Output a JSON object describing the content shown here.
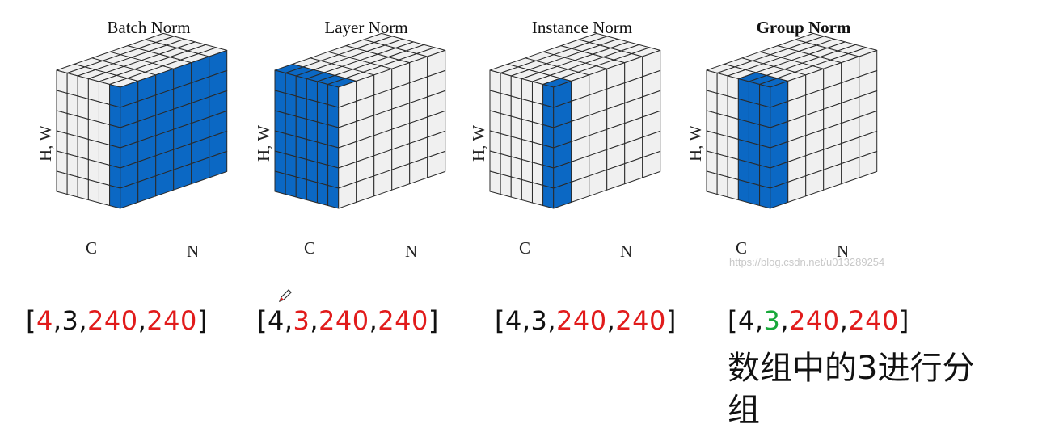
{
  "colors": {
    "highlight": "#0b68c4",
    "cell": "#f0f0f0",
    "edge": "#2a2a2a",
    "red": "#e11b1b",
    "green": "#18a83a",
    "black": "#111111"
  },
  "axes": {
    "hw": "H, W",
    "c": "C",
    "n": "N"
  },
  "cubes": [
    {
      "title": "Batch Norm",
      "bold": false,
      "highlight": "batch",
      "shape": [
        {
          "t": "[",
          "c": "black"
        },
        {
          "t": "4",
          "c": "red"
        },
        {
          "t": ",3,",
          "c": "black"
        },
        {
          "t": "240",
          "c": "red"
        },
        {
          "t": ",",
          "c": "black"
        },
        {
          "t": "240",
          "c": "red"
        },
        {
          "t": "]",
          "c": "black"
        }
      ]
    },
    {
      "title": "Layer Norm",
      "bold": false,
      "highlight": "layer",
      "shape": [
        {
          "t": "[4,",
          "c": "black"
        },
        {
          "t": "3",
          "c": "red"
        },
        {
          "t": ",",
          "c": "black"
        },
        {
          "t": "240",
          "c": "red"
        },
        {
          "t": ",",
          "c": "black"
        },
        {
          "t": "240",
          "c": "red"
        },
        {
          "t": "]",
          "c": "black"
        }
      ]
    },
    {
      "title": "Instance Norm",
      "bold": false,
      "highlight": "instance",
      "shape": [
        {
          "t": "[4,3,",
          "c": "black"
        },
        {
          "t": "240",
          "c": "red"
        },
        {
          "t": ",",
          "c": "black"
        },
        {
          "t": "240",
          "c": "red"
        },
        {
          "t": "]",
          "c": "black"
        }
      ]
    },
    {
      "title": "Group Norm",
      "bold": true,
      "highlight": "group",
      "shape": [
        {
          "t": "[4,",
          "c": "black"
        },
        {
          "t": "3",
          "c": "green"
        },
        {
          "t": ",",
          "c": "black"
        },
        {
          "t": "240",
          "c": "red"
        },
        {
          "t": ",",
          "c": "black"
        },
        {
          "t": "240",
          "c": "red"
        },
        {
          "t": "]",
          "c": "black"
        }
      ]
    }
  ],
  "note": "数组中的3进行分组",
  "watermark": "https://blog.csdn.net/u013289254",
  "icons": {
    "cursor": "pen-cursor-icon"
  }
}
